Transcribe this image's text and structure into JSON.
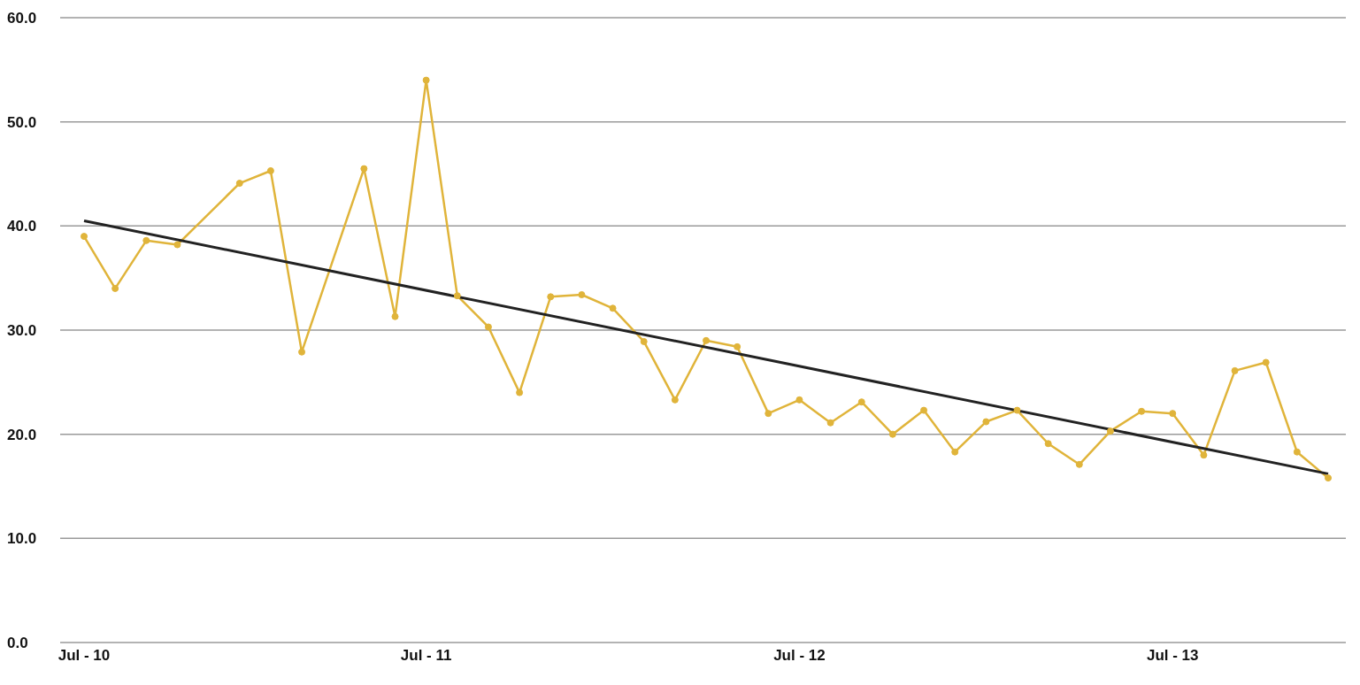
{
  "chart_data": {
    "type": "line",
    "categories": [
      "Jul - 10",
      null,
      null,
      null,
      null,
      null,
      null,
      null,
      null,
      null,
      null,
      "Jul - 11",
      null,
      null,
      null,
      null,
      null,
      null,
      null,
      null,
      null,
      null,
      null,
      "Jul - 12",
      null,
      null,
      null,
      null,
      null,
      null,
      null,
      null,
      null,
      null,
      null,
      "Jul - 13",
      null,
      null,
      null,
      null,
      null
    ],
    "series": [
      {
        "color": "#e0b43a",
        "values": [
          39.0,
          34.0,
          38.6,
          38.2,
          null,
          44.1,
          45.3,
          27.9,
          null,
          45.5,
          31.3,
          54.0,
          33.3,
          30.3,
          24.0,
          33.2,
          33.4,
          32.1,
          28.9,
          23.3,
          29.0,
          28.4,
          22.0,
          23.3,
          21.1,
          23.1,
          20.0,
          22.3,
          18.3,
          21.2,
          22.3,
          19.1,
          17.1,
          20.3,
          22.2,
          22.0,
          18.0,
          26.1,
          26.9,
          18.3,
          15.8
        ]
      },
      {
        "type": "line",
        "color": "#222222",
        "marker": "none",
        "values": [
          40.5,
          null,
          null,
          null,
          null,
          null,
          null,
          null,
          null,
          null,
          null,
          null,
          null,
          null,
          null,
          null,
          null,
          null,
          null,
          null,
          null,
          null,
          null,
          null,
          null,
          null,
          null,
          null,
          null,
          null,
          null,
          null,
          null,
          null,
          null,
          null,
          null,
          null,
          null,
          null,
          16.2
        ]
      }
    ],
    "ylim": [
      0,
      60
    ],
    "yticks": [
      {
        "value": 0,
        "label": "0.0"
      },
      {
        "value": 10,
        "label": "10.0"
      },
      {
        "value": 20,
        "label": "20.0"
      },
      {
        "value": 30,
        "label": "30.0"
      },
      {
        "value": 40,
        "label": "40.0"
      },
      {
        "value": 50,
        "label": "50.0"
      },
      {
        "value": 60,
        "label": "60.0"
      }
    ],
    "grid": "y",
    "marker": "circle"
  }
}
